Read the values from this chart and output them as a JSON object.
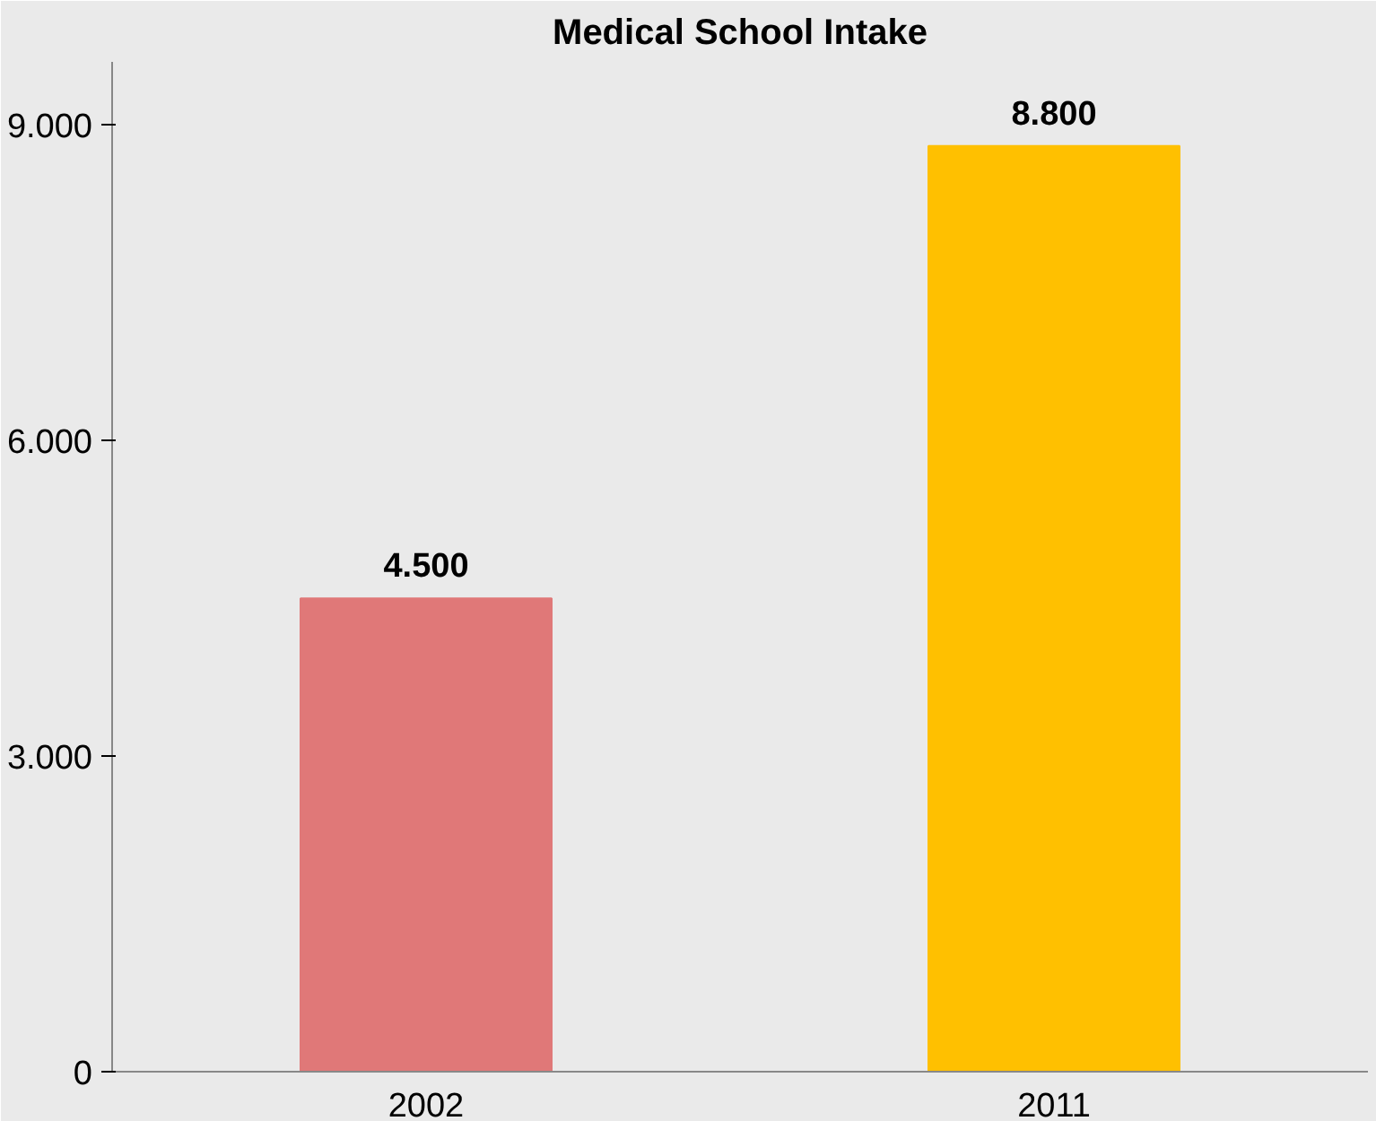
{
  "chart_data": {
    "type": "bar",
    "title": "Medical School Intake",
    "categories": [
      "2002",
      "2011"
    ],
    "values": [
      4500,
      8800
    ],
    "colors": [
      "#e07878",
      "#ffc000"
    ],
    "value_labels": [
      "4.500",
      "8.800"
    ],
    "ylim": [
      0,
      9600
    ],
    "yticks": [
      {
        "value": 0,
        "label": "0"
      },
      {
        "value": 3000,
        "label": "3.000"
      },
      {
        "value": 6000,
        "label": "6.000"
      },
      {
        "value": 9000,
        "label": "9.000"
      }
    ],
    "orientation": "vertical"
  }
}
